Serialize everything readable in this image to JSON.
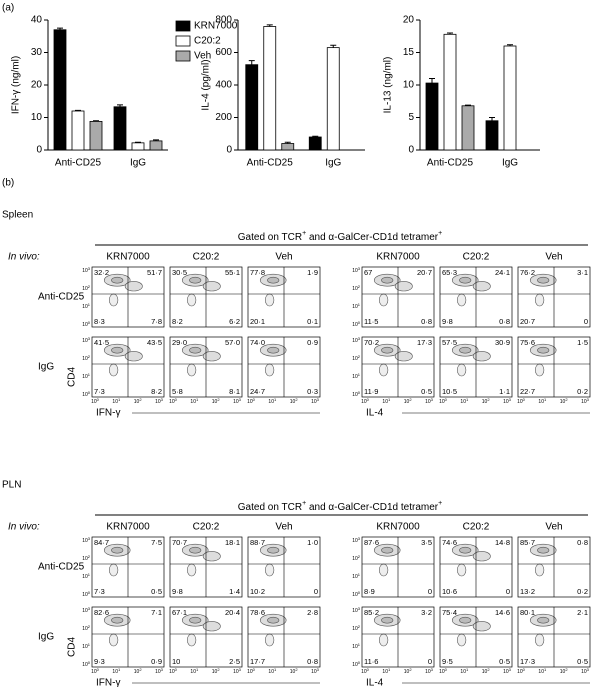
{
  "panel_labels": [
    "(a)",
    "(b)"
  ],
  "chart_data": [
    {
      "type": "bar",
      "ylabel": "IFN-γ (ng/ml)",
      "categories": [
        "Anti-CD25",
        "IgG"
      ],
      "ylim": [
        0,
        40
      ],
      "yticks": [
        0,
        10,
        20,
        30,
        40
      ],
      "legend": "upper right",
      "series": [
        {
          "name": "KRN7000",
          "color": "#000000",
          "values": [
            37,
            13.3
          ],
          "errors": [
            0.5,
            0.6
          ]
        },
        {
          "name": "C20:2",
          "color": "#ffffff",
          "values": [
            12,
            2.2
          ],
          "errors": [
            0.2,
            0.2
          ]
        },
        {
          "name": "Veh",
          "color": "#aaaaaa",
          "values": [
            8.8,
            2.8
          ],
          "errors": [
            0.2,
            0.3
          ]
        }
      ]
    },
    {
      "type": "bar",
      "ylabel": "IL-4 (pg/ml)",
      "categories": [
        "Anti-CD25",
        "IgG"
      ],
      "ylim": [
        0,
        800
      ],
      "yticks": [
        0,
        200,
        400,
        600,
        800
      ],
      "series": [
        {
          "color": "#000000",
          "values": [
            525,
            80
          ],
          "errors": [
            25,
            5
          ]
        },
        {
          "color": "#ffffff",
          "values": [
            760,
            630
          ],
          "errors": [
            10,
            15
          ]
        },
        {
          "color": "#aaaaaa",
          "values": [
            40,
            null
          ],
          "errors": [
            8,
            null
          ]
        }
      ]
    },
    {
      "type": "bar",
      "ylabel": "IL-13 (ng/ml)",
      "categories": [
        "Anti-CD25",
        "IgG"
      ],
      "ylim": [
        0,
        20
      ],
      "yticks": [
        0,
        5,
        10,
        15,
        20
      ],
      "series": [
        {
          "color": "#000000",
          "values": [
            10.3,
            4.5
          ],
          "errors": [
            0.7,
            0.5
          ]
        },
        {
          "color": "#ffffff",
          "values": [
            17.8,
            16
          ],
          "errors": [
            0.2,
            0.2
          ]
        },
        {
          "color": "#aaaaaa",
          "values": [
            6.8,
            null
          ],
          "errors": [
            0.1,
            null
          ]
        }
      ]
    }
  ],
  "panel_b": {
    "in_vivo": "In vivo:",
    "row_labels": [
      "Anti-CD25",
      "IgG"
    ],
    "ylabel": "CD4",
    "tick_base": "10",
    "tick_exps": [
      "0",
      "1",
      "2",
      "3"
    ],
    "gated": {
      "pre": "Gated on TCR",
      "sup1": "+",
      "mid": " and α-GalCer-CD1d tetramer",
      "sup2": "+"
    },
    "blocks": [
      {
        "xlabel": "IFN-γ",
        "groups": [
          "KRN7000",
          "C20:2",
          "Veh"
        ]
      },
      {
        "xlabel": "IL-4",
        "groups": [
          "KRN7000",
          "C20:2",
          "Veh"
        ]
      }
    ],
    "sections": [
      {
        "name": "Spleen",
        "quadrants": [
          [
            [
              [
                "32·2",
                "51·7",
                "8·3",
                "7·8"
              ],
              [
                "30·5",
                "55·1",
                "8·2",
                "6·2"
              ],
              [
                "77·8",
                "1·9",
                "20·1",
                "0·1"
              ]
            ],
            [
              [
                "67",
                "20·7",
                "11·5",
                "0·8"
              ],
              [
                "65·3",
                "24·1",
                "9·8",
                "0·8"
              ],
              [
                "76·2",
                "3·1",
                "20·7",
                "0"
              ]
            ]
          ],
          [
            [
              [
                "41·5",
                "43·5",
                "7·3",
                "8·2"
              ],
              [
                "29·0",
                "57·0",
                "5·8",
                "8·1"
              ],
              [
                "74·0",
                "0·9",
                "24·7",
                "0·3"
              ]
            ],
            [
              [
                "70·2",
                "17·3",
                "11·9",
                "0·5"
              ],
              [
                "57·5",
                "30·9",
                "10·5",
                "1·1"
              ],
              [
                "75·6",
                "1·5",
                "22·7",
                "0·2"
              ]
            ]
          ]
        ]
      },
      {
        "name": "PLN",
        "quadrants": [
          [
            [
              [
                "84·7",
                "7·5",
                "7·3",
                "0·5"
              ],
              [
                "70·7",
                "18·1",
                "9·8",
                "1·4"
              ],
              [
                "88·7",
                "1·0",
                "10·2",
                "0"
              ]
            ],
            [
              [
                "87·6",
                "3·5",
                "8·9",
                "0"
              ],
              [
                "74·6",
                "14·8",
                "10·6",
                "0"
              ],
              [
                "85·7",
                "0·8",
                "13·2",
                "0·2"
              ]
            ]
          ],
          [
            [
              [
                "82·6",
                "7·1",
                "9·3",
                "0·9"
              ],
              [
                "67·1",
                "20·4",
                "10",
                "2·5"
              ],
              [
                "78·6",
                "2·8",
                "17·7",
                "0·8"
              ]
            ],
            [
              [
                "85·2",
                "3·2",
                "11·6",
                "0"
              ],
              [
                "75·4",
                "14·6",
                "9·5",
                "0·5"
              ],
              [
                "80·1",
                "2·1",
                "17·3",
                "0·5"
              ]
            ]
          ]
        ]
      }
    ]
  }
}
